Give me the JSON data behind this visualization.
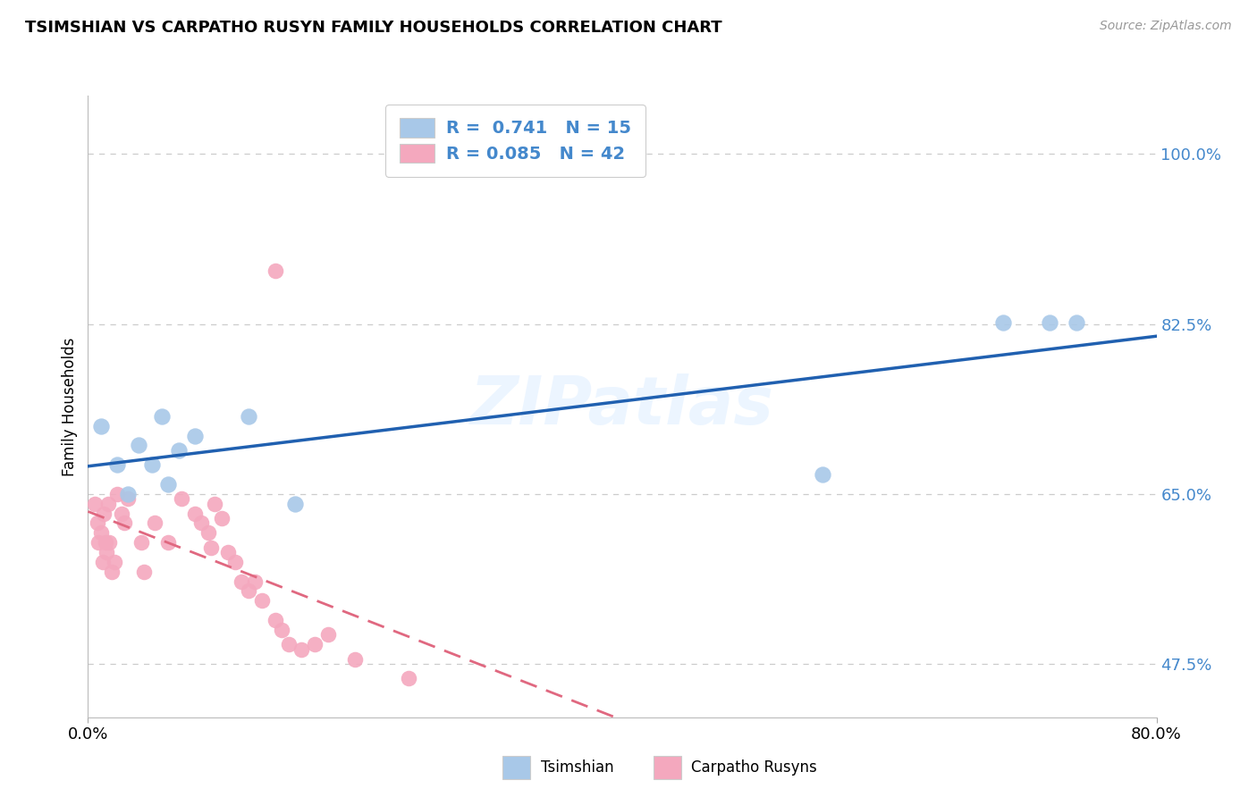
{
  "title": "TSIMSHIAN VS CARPATHO RUSYN FAMILY HOUSEHOLDS CORRELATION CHART",
  "source_text": "Source: ZipAtlas.com",
  "ylabel": "Family Households",
  "xlim": [
    0.0,
    0.8
  ],
  "ylim": [
    0.42,
    1.06
  ],
  "tsimshian_x": [
    0.01,
    0.022,
    0.03,
    0.038,
    0.048,
    0.055,
    0.06,
    0.068,
    0.08,
    0.12,
    0.155,
    0.55,
    0.685,
    0.72,
    0.74
  ],
  "tsimshian_y": [
    0.72,
    0.68,
    0.65,
    0.7,
    0.68,
    0.73,
    0.66,
    0.695,
    0.71,
    0.73,
    0.64,
    0.67,
    0.826,
    0.826,
    0.826
  ],
  "carpatho_x": [
    0.005,
    0.007,
    0.008,
    0.01,
    0.011,
    0.012,
    0.013,
    0.014,
    0.015,
    0.016,
    0.018,
    0.02,
    0.022,
    0.025,
    0.027,
    0.03,
    0.04,
    0.042,
    0.05,
    0.06,
    0.07,
    0.08,
    0.085,
    0.09,
    0.092,
    0.095,
    0.1,
    0.105,
    0.11,
    0.115,
    0.12,
    0.125,
    0.13,
    0.14,
    0.145,
    0.15,
    0.16,
    0.17,
    0.18,
    0.2,
    0.24,
    0.14
  ],
  "carpatho_y": [
    0.64,
    0.62,
    0.6,
    0.61,
    0.58,
    0.63,
    0.6,
    0.59,
    0.64,
    0.6,
    0.57,
    0.58,
    0.65,
    0.63,
    0.62,
    0.645,
    0.6,
    0.57,
    0.62,
    0.6,
    0.645,
    0.63,
    0.62,
    0.61,
    0.595,
    0.64,
    0.625,
    0.59,
    0.58,
    0.56,
    0.55,
    0.56,
    0.54,
    0.52,
    0.51,
    0.495,
    0.49,
    0.495,
    0.505,
    0.48,
    0.46,
    0.88
  ],
  "tsimshian_color": "#A8C8E8",
  "carpatho_color": "#F4A8BE",
  "tsimshian_line_color": "#2060B0",
  "carpatho_line_color": "#E06880",
  "r_tsimshian": 0.741,
  "n_tsimshian": 15,
  "r_carpatho": 0.085,
  "n_carpatho": 42,
  "ytick_positions": [
    0.475,
    0.65,
    0.825,
    1.0
  ],
  "ytick_labels": [
    "47.5%",
    "65.0%",
    "82.5%",
    "100.0%"
  ],
  "xtick_positions": [
    0.0,
    0.8
  ],
  "xtick_labels": [
    "0.0%",
    "80.0%"
  ],
  "tick_color": "#4488CC",
  "grid_color": "#cccccc",
  "background_color": "#ffffff",
  "watermark": "ZIPatlas"
}
